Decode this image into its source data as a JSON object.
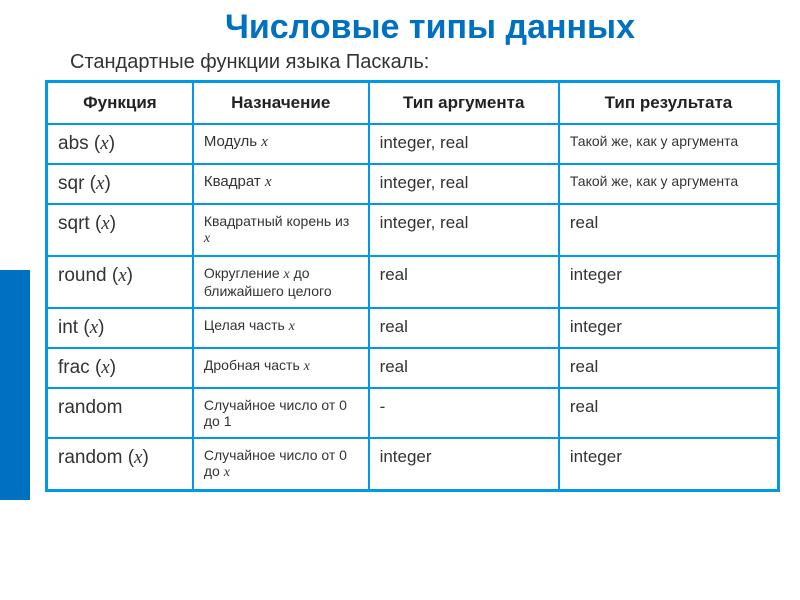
{
  "title": "Числовые типы данных",
  "subtitle": "Стандартные функции языка Паскаль:",
  "colors": {
    "accent": "#0070c0",
    "border": "#0099e6",
    "text": "#333333",
    "background": "#ffffff"
  },
  "table": {
    "columns": [
      "Функция",
      "Назначение",
      "Тип аргумента",
      "Тип результата"
    ],
    "column_widths": [
      "20%",
      "24%",
      "26%",
      "30%"
    ],
    "rows": [
      {
        "func": "abs (x)",
        "desc": "Модуль  x",
        "arg": "integer, real",
        "res": "Такой же, как у аргумента",
        "res_small": true
      },
      {
        "func": "sqr (x)",
        "desc": "Квадрат x",
        "arg": "integer, real",
        "res": "Такой же, как у аргумента",
        "res_small": true
      },
      {
        "func": "sqrt (x)",
        "desc": "Квадратный корень из x",
        "desc_small": true,
        "arg": "integer, real",
        "res": "real"
      },
      {
        "func": "round (x)",
        "desc": "Округление  x до ближайшего целого",
        "desc_small": true,
        "arg": "real",
        "res": "integer"
      },
      {
        "func": "int (x)",
        "desc": "Целая часть x",
        "desc_small": true,
        "arg": "real",
        "res": "integer"
      },
      {
        "func": "frac (x)",
        "desc": "Дробная часть x",
        "desc_small": true,
        "arg": "real",
        "res": "real"
      },
      {
        "func": "random",
        "desc": "Случайное число от 0 до 1",
        "desc_small": true,
        "arg": "-",
        "res": "real"
      },
      {
        "func": "random (x)",
        "desc": "Случайное число от 0 до x",
        "desc_small": true,
        "arg": "integer",
        "res": "integer"
      }
    ]
  }
}
